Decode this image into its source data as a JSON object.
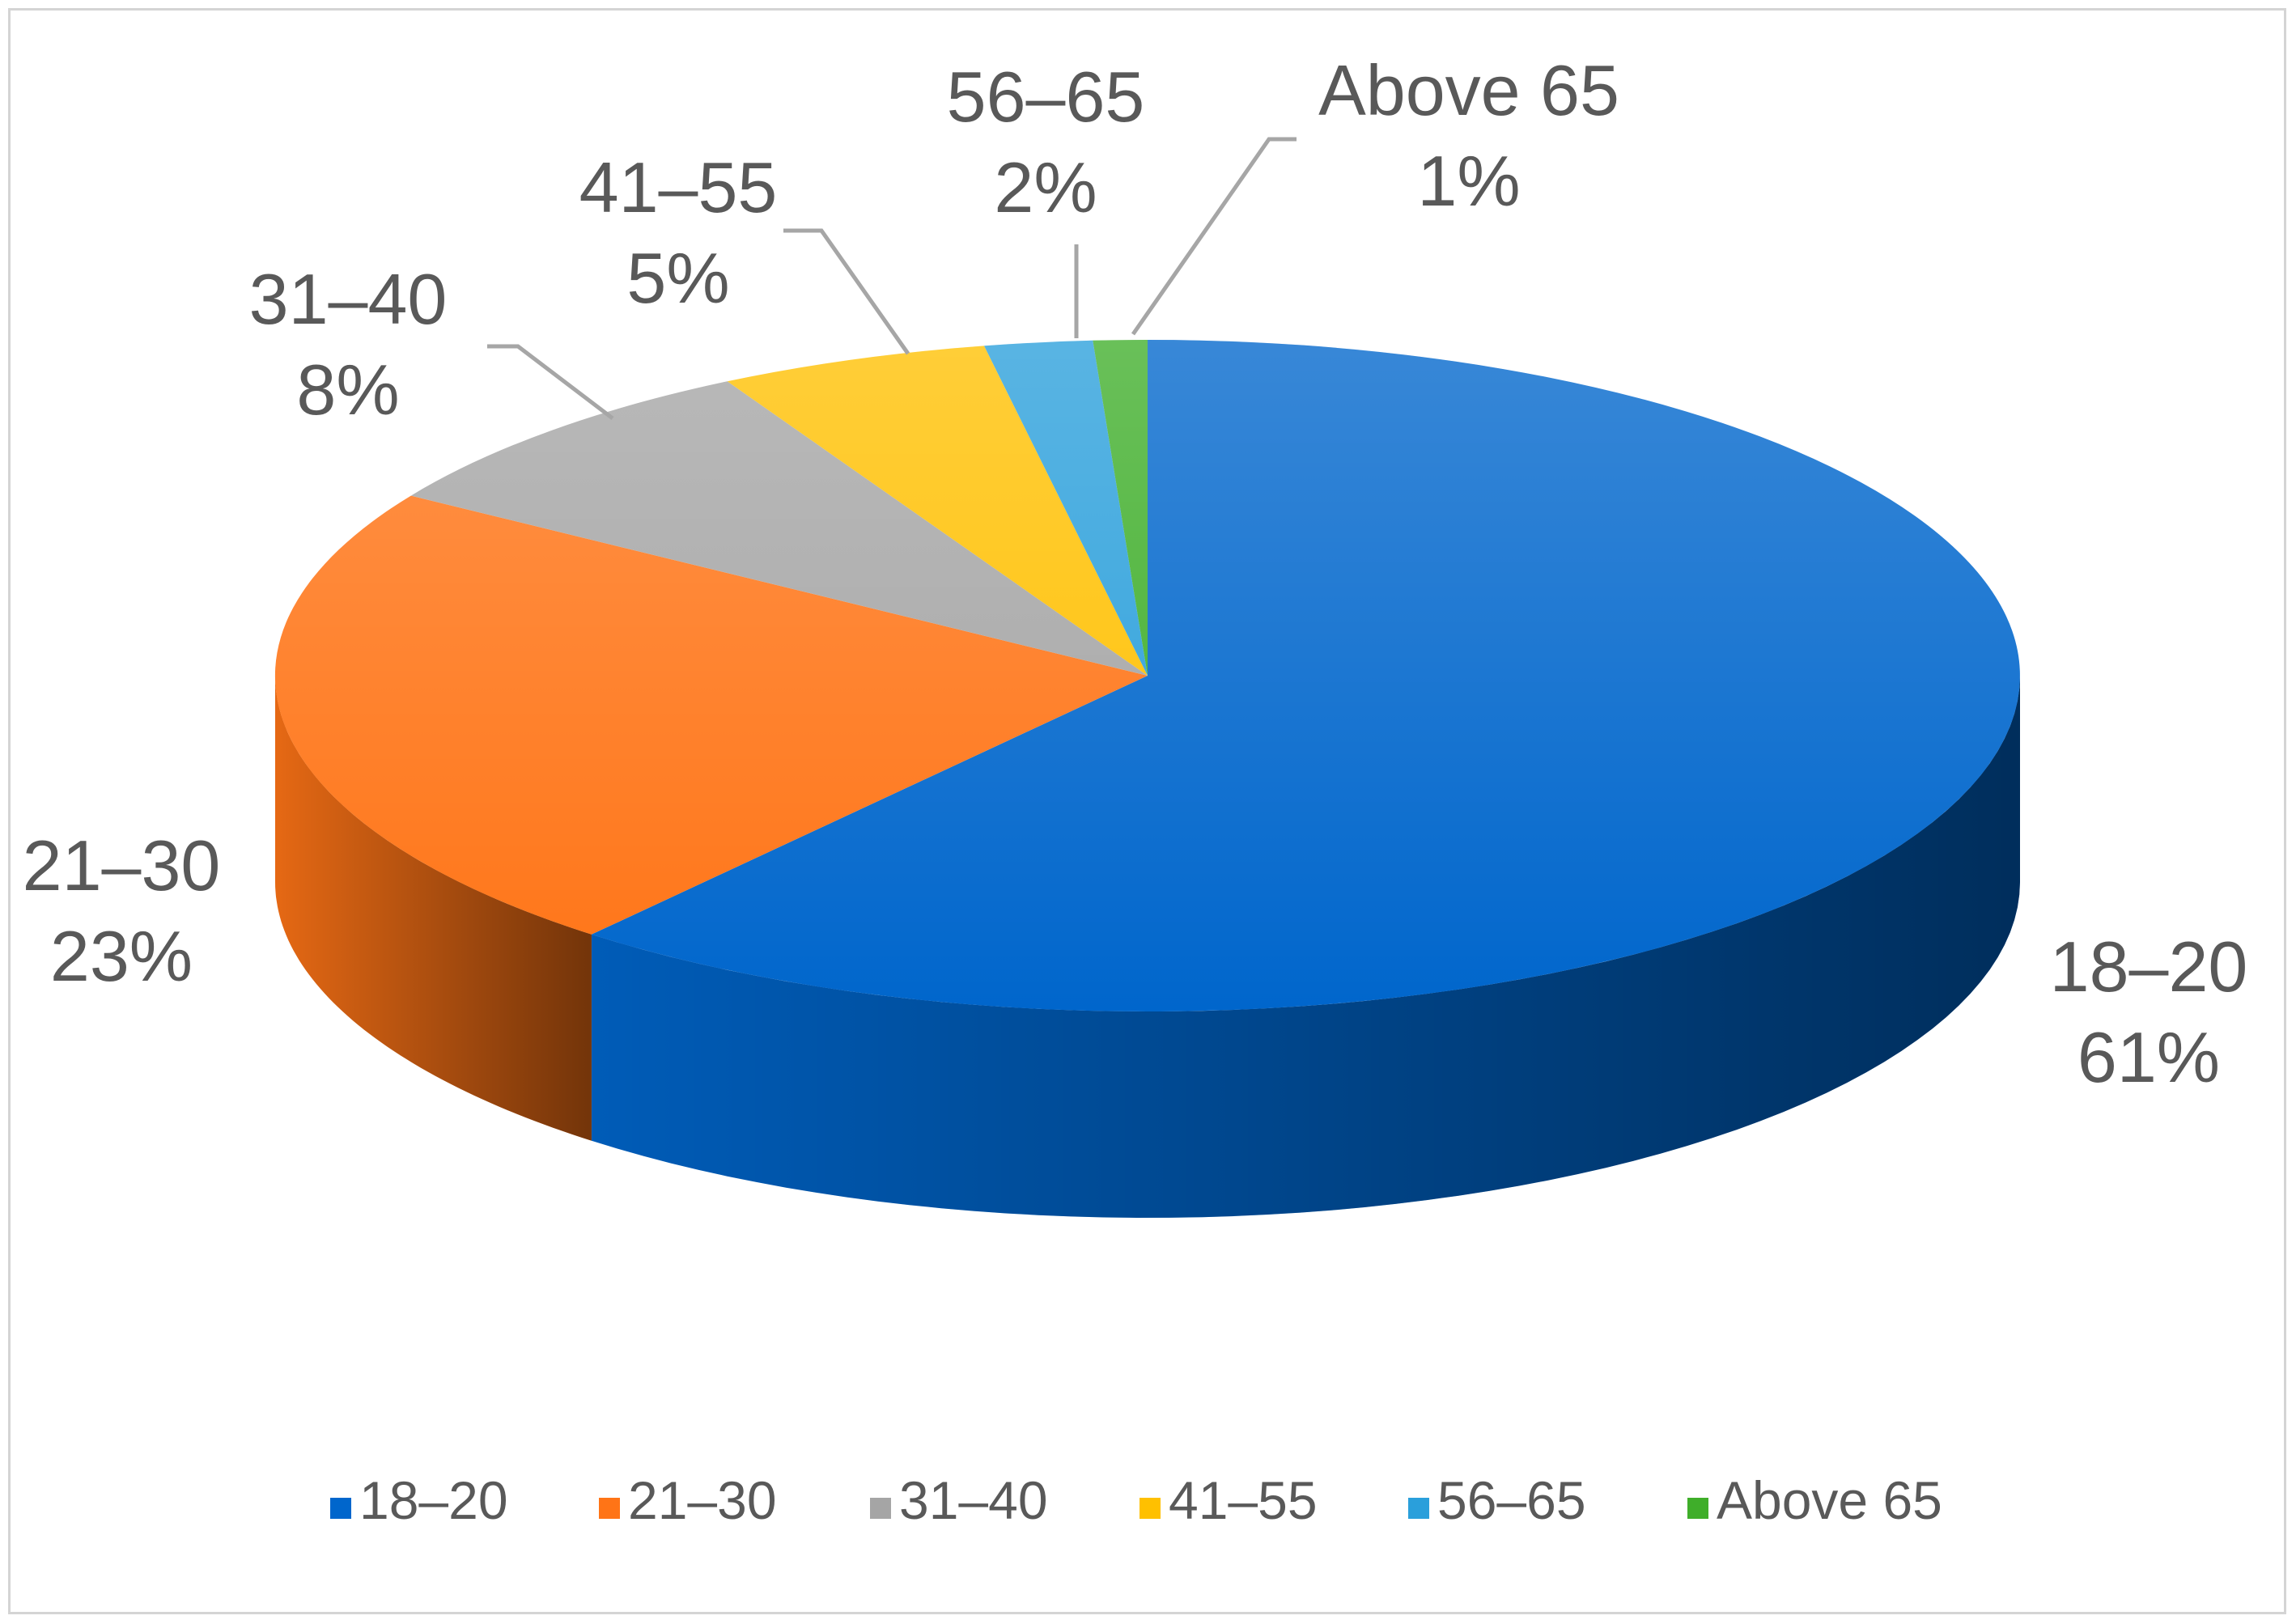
{
  "chart_data": {
    "type": "pie",
    "title": "",
    "legend_position": "bottom",
    "slices": [
      {
        "name": "18–20",
        "value": 61,
        "label": "61%",
        "color": "#0066cc"
      },
      {
        "name": "21–30",
        "value": 23,
        "label": "23%",
        "color": "#ff7416"
      },
      {
        "name": "31–40",
        "value": 8,
        "label": "8%",
        "color": "#a5a5a5"
      },
      {
        "name": "41–55",
        "value": 5,
        "label": "5%",
        "color": "#ffc000"
      },
      {
        "name": "56–65",
        "value": 2,
        "label": "2%",
        "color": "#2a9fdb"
      },
      {
        "name": "Above 65",
        "value": 1,
        "label": "1%",
        "color": "#3fae2a"
      }
    ]
  }
}
